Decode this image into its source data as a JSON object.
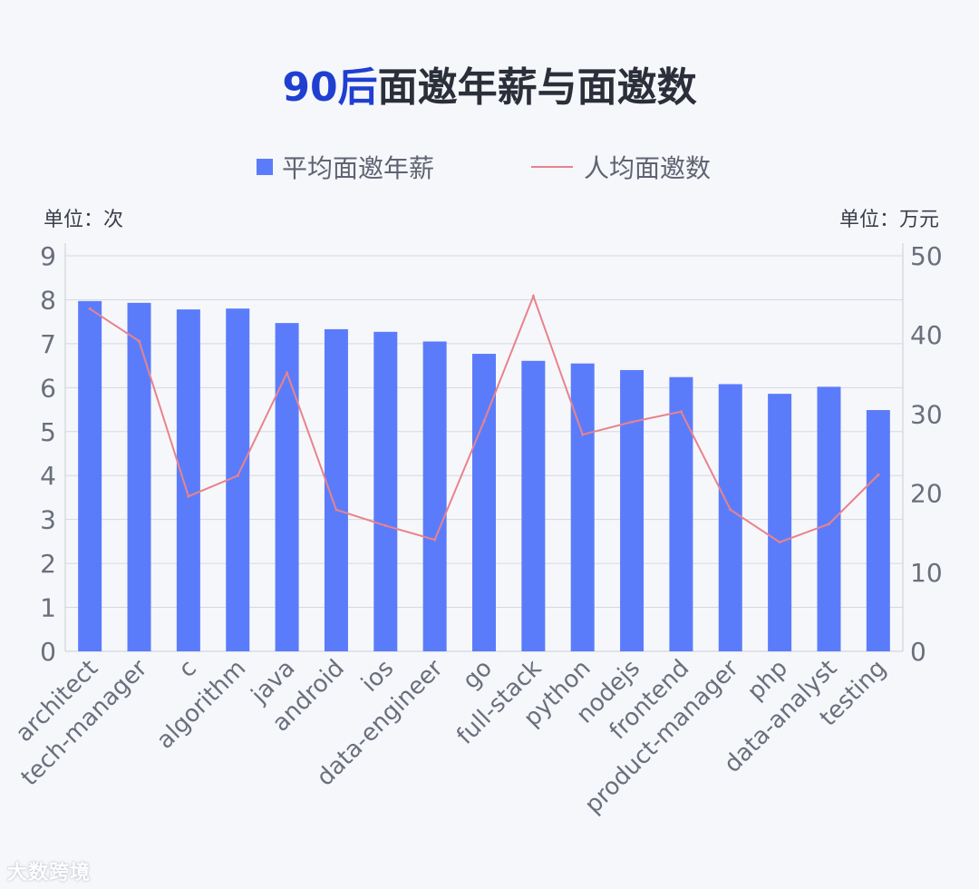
{
  "title": {
    "highlight": "90后",
    "rest": "面邀年薪与面邀数"
  },
  "units": {
    "left": "单位：次",
    "right": "单位：万元"
  },
  "legend": [
    {
      "label": "平均面邀年薪",
      "kind": "bar",
      "color": "#5b7cfa"
    },
    {
      "label": "人均面邀数",
      "kind": "line",
      "color": "#e8838c"
    }
  ],
  "watermark": "大数跨境",
  "chart_data": {
    "type": "bar",
    "categories": [
      "architect",
      "tech-manager",
      "c",
      "algorithm",
      "java",
      "android",
      "ios",
      "data-engineer",
      "go",
      "full-stack",
      "python",
      "nodejs",
      "frontend",
      "product-manager",
      "php",
      "data-analyst",
      "testing"
    ],
    "series": [
      {
        "name": "平均面邀年薪",
        "type": "bar",
        "axis": "left",
        "color": "#5b7cfa",
        "values": [
          7.97,
          7.93,
          7.78,
          7.8,
          7.47,
          7.33,
          7.27,
          7.05,
          6.77,
          6.61,
          6.55,
          6.4,
          6.24,
          6.08,
          5.86,
          6.02,
          5.49
        ]
      },
      {
        "name": "人均面邀数",
        "type": "line",
        "axis": "right",
        "color": "#e8838c",
        "values": [
          43.3,
          39.2,
          19.6,
          22.2,
          35.2,
          17.9,
          15.9,
          14.1,
          29.1,
          44.9,
          27.4,
          29.0,
          30.3,
          17.9,
          13.8,
          16.1,
          22.3
        ]
      }
    ],
    "y_left": {
      "ylim": [
        0,
        9
      ],
      "ticks": [
        0,
        1,
        2,
        3,
        4,
        5,
        6,
        7,
        8,
        9
      ]
    },
    "y_right": {
      "ylim": [
        0,
        50
      ],
      "ticks": [
        0,
        10,
        20,
        30,
        40,
        50
      ]
    },
    "grid": true,
    "legend_position": "top"
  }
}
